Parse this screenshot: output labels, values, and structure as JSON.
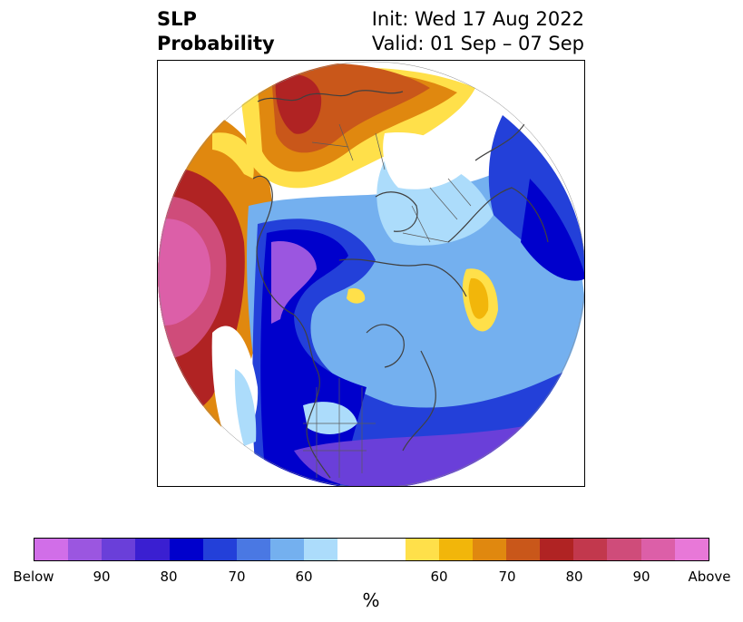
{
  "header": {
    "variable_line1": "SLP",
    "variable_line2": "Probability",
    "init_text": "Init: Wed 17 Aug 2022",
    "valid_text": "Valid: 01 Sep – 07 Sep"
  },
  "legend": {
    "colors": [
      "#d16ee8",
      "#9b56e0",
      "#6a3fd9",
      "#3a1fd1",
      "#0000cc",
      "#2340d9",
      "#4a78e3",
      "#74b0ef",
      "#acdcfb",
      "#ffffff",
      "#ffffff",
      "#ffe04a",
      "#f2b60a",
      "#e0880f",
      "#c9571a",
      "#b02323",
      "#c2384d",
      "#cf4c7a",
      "#dc5fa8",
      "#e878d8"
    ],
    "tick_labels": [
      "Below",
      "90",
      "80",
      "70",
      "60",
      "60",
      "70",
      "80",
      "90",
      "Above"
    ],
    "unit": "%"
  }
}
